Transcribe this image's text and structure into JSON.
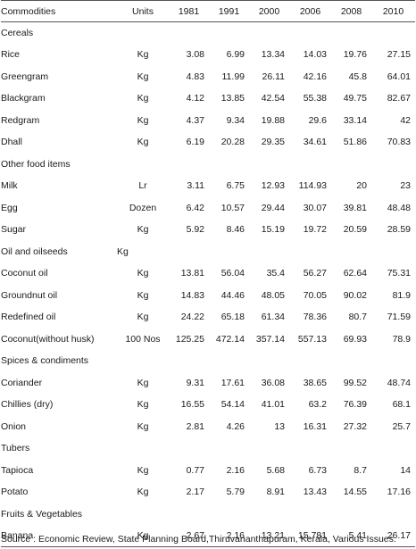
{
  "headers": [
    "Commodities",
    "Units",
    "1981",
    "1991",
    "2000",
    "2006",
    "2008",
    "2010"
  ],
  "groups": [
    {
      "category": "Cereals",
      "category_unit": "",
      "items": [
        {
          "name": "Rice",
          "unit": "Kg",
          "values": [
            "3.08",
            "6.99",
            "13.34",
            "14.03",
            "19.76",
            "27.15"
          ]
        },
        {
          "name": "Greengram",
          "unit": "Kg",
          "values": [
            "4.83",
            "11.99",
            "26.11",
            "42.16",
            "45.8",
            "64.01"
          ]
        },
        {
          "name": "Blackgram",
          "unit": "Kg",
          "values": [
            "4.12",
            "13.85",
            "42.54",
            "55.38",
            "49.75",
            "82.67"
          ]
        },
        {
          "name": "Redgram",
          "unit": "Kg",
          "values": [
            "4.37",
            "9.34",
            "19.88",
            "29.6",
            "33.14",
            "42"
          ]
        },
        {
          "name": "Dhall",
          "unit": "Kg",
          "values": [
            "6.19",
            "20.28",
            "29.35",
            "34.61",
            "51.86",
            "70.83"
          ]
        }
      ]
    },
    {
      "category": "Other food items",
      "category_unit": "",
      "items": [
        {
          "name": "Milk",
          "unit": "Lr",
          "values": [
            "3.11",
            "6.75",
            "12.93",
            "114.93",
            "20",
            "23"
          ]
        },
        {
          "name": "Egg",
          "unit": "Dozen",
          "values": [
            "6.42",
            "10.57",
            "29.44",
            "30.07",
            "39.81",
            "48.48"
          ]
        },
        {
          "name": "Sugar",
          "unit": "Kg",
          "values": [
            "5.92",
            "8.46",
            "15.19",
            "19.72",
            "20.59",
            "28.59"
          ]
        }
      ]
    },
    {
      "category": "Oil and oilseeds",
      "category_unit": "Kg",
      "items": [
        {
          "name": "Coconut oil",
          "unit": "Kg",
          "values": [
            "13.81",
            "56.04",
            "35.4",
            "56.27",
            "62.64",
            "75.31"
          ]
        },
        {
          "name": "Groundnut oil",
          "unit": "Kg",
          "values": [
            "14.83",
            "44.46",
            "48.05",
            "70.05",
            "90.02",
            "81.9"
          ]
        },
        {
          "name": "Redefined oil",
          "unit": "Kg",
          "values": [
            "24.22",
            "65.18",
            "61.34",
            "78.36",
            "80.7",
            "71.59"
          ]
        },
        {
          "name": "Coconut(without husk)",
          "unit": "100 Nos",
          "values": [
            "125.25",
            "472.14",
            "357.14",
            "557.13",
            "69.93",
            "78.9"
          ]
        }
      ]
    },
    {
      "category": "Spices & condiments",
      "category_unit": "",
      "items": [
        {
          "name": "Coriander",
          "unit": "Kg",
          "values": [
            "9.31",
            "17.61",
            "36.08",
            "38.65",
            "99.52",
            "48.74"
          ]
        },
        {
          "name": "Chillies (dry)",
          "unit": "Kg",
          "values": [
            "16.55",
            "54.14",
            "41.01",
            "63.2",
            "76.39",
            "68.1"
          ]
        },
        {
          "name": "Onion",
          "unit": "Kg",
          "values": [
            "2.81",
            "4.26",
            "13",
            "16.31",
            "27.32",
            "25.7"
          ]
        }
      ]
    },
    {
      "category": "Tubers",
      "category_unit": "",
      "items": [
        {
          "name": "Tapioca",
          "unit": "Kg",
          "values": [
            "0.77",
            "2.16",
            "5.68",
            "6.73",
            "8.7",
            "14"
          ]
        },
        {
          "name": "Potato",
          "unit": "Kg",
          "values": [
            "2.17",
            "5.79",
            "8.91",
            "13.43",
            "14.55",
            "17.16"
          ]
        }
      ]
    },
    {
      "category": "Fruits & Vegetables",
      "category_unit": "",
      "items": [
        {
          "name": "Banana",
          "unit": "Kg",
          "values": [
            "2.67",
            "2.16",
            "13.21",
            "15.781",
            "5.41",
            "26.17"
          ]
        }
      ]
    }
  ],
  "source": "Source : Economic Review, State Planning Board,Thiruvananthapuram, Kerala, Various Issues."
}
